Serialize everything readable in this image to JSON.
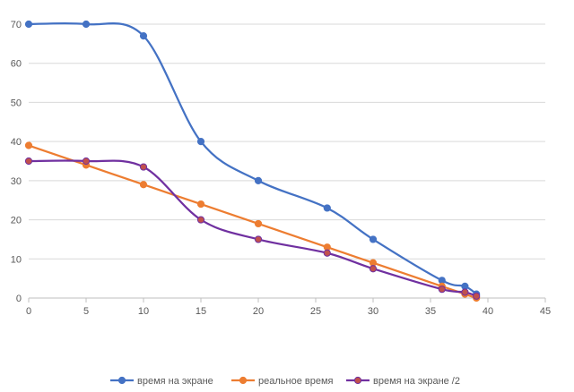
{
  "chart_data": {
    "type": "scatter",
    "smooth": true,
    "title": "",
    "xlabel": "",
    "ylabel": "",
    "xlim": [
      0,
      45
    ],
    "ylim": [
      0,
      70
    ],
    "x_ticks": [
      0,
      5,
      10,
      15,
      20,
      25,
      30,
      35,
      40,
      45
    ],
    "y_ticks": [
      0,
      10,
      20,
      30,
      40,
      50,
      60,
      70
    ],
    "grid": "horizontal",
    "legend_position": "bottom",
    "series": [
      {
        "name": "время на экране",
        "color": "#4472c4",
        "marker_color": "#4472c4",
        "points": [
          [
            0,
            70
          ],
          [
            5,
            70
          ],
          [
            10,
            67
          ],
          [
            15,
            40
          ],
          [
            20,
            30
          ],
          [
            26,
            23
          ],
          [
            30,
            15
          ],
          [
            36,
            4.5
          ],
          [
            38,
            3
          ],
          [
            39,
            1
          ]
        ]
      },
      {
        "name": "реальное время",
        "color": "#ed7d31",
        "marker_color": "#ed7d31",
        "points": [
          [
            0,
            39
          ],
          [
            5,
            34
          ],
          [
            10,
            29
          ],
          [
            15,
            24
          ],
          [
            20,
            19
          ],
          [
            26,
            13
          ],
          [
            30,
            9
          ],
          [
            36,
            3
          ],
          [
            38,
            1
          ],
          [
            39,
            0
          ]
        ]
      },
      {
        "name": "время на экране /2",
        "color": "#7030a0",
        "marker_color": "#c0504d",
        "points": [
          [
            0,
            35
          ],
          [
            5,
            35
          ],
          [
            10,
            33.5
          ],
          [
            15,
            20
          ],
          [
            20,
            15
          ],
          [
            26,
            11.5
          ],
          [
            30,
            7.5
          ],
          [
            36,
            2.25
          ],
          [
            38,
            1.5
          ],
          [
            39,
            0.5
          ]
        ]
      }
    ]
  }
}
